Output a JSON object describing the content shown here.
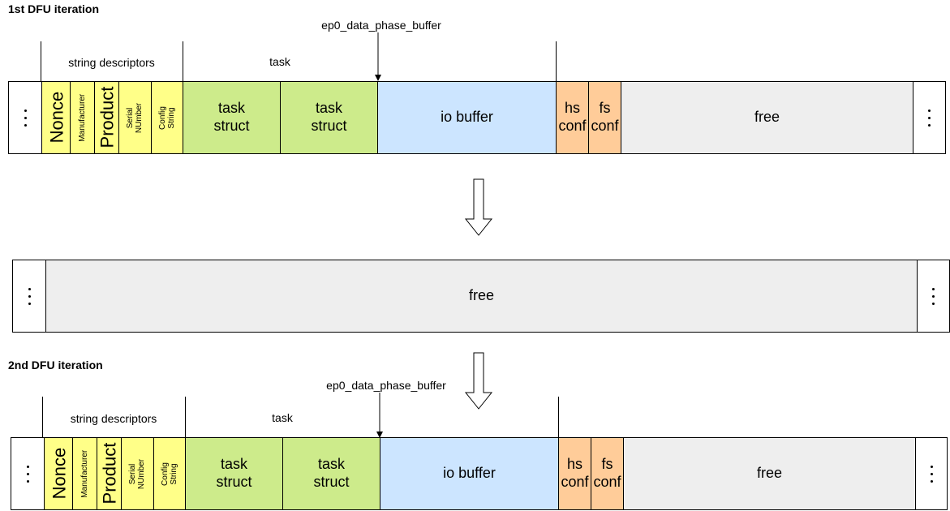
{
  "iterations": {
    "first": {
      "title": "1st DFU iteration",
      "pointer_label": "ep0_data_phase_buffer",
      "section_string_descriptors": "string descriptors",
      "section_task": "task"
    },
    "second": {
      "title": "2nd DFU iteration",
      "pointer_label": "ep0_data_phase_buffer",
      "section_string_descriptors": "string descriptors",
      "section_task": "task"
    }
  },
  "cells": {
    "nonce": "Nonce",
    "manufacturer": "Manufacturer",
    "product": "Product",
    "serial_line1": "Serial",
    "serial_line2": "NUmber",
    "config_line1": "Config",
    "config_line2": "String",
    "task_line1": "task",
    "task_line2": "struct",
    "io_buffer": "io buffer",
    "hs_line1": "hs",
    "hs_line2": "conf",
    "fs_line1": "fs",
    "fs_line2": "conf",
    "free": "free"
  },
  "colors": {
    "string_descriptor": "#ffff88",
    "task_struct": "#cdeb8b",
    "io_buffer": "#cce5ff",
    "conf": "#ffcc99",
    "free": "#eeeeee"
  }
}
